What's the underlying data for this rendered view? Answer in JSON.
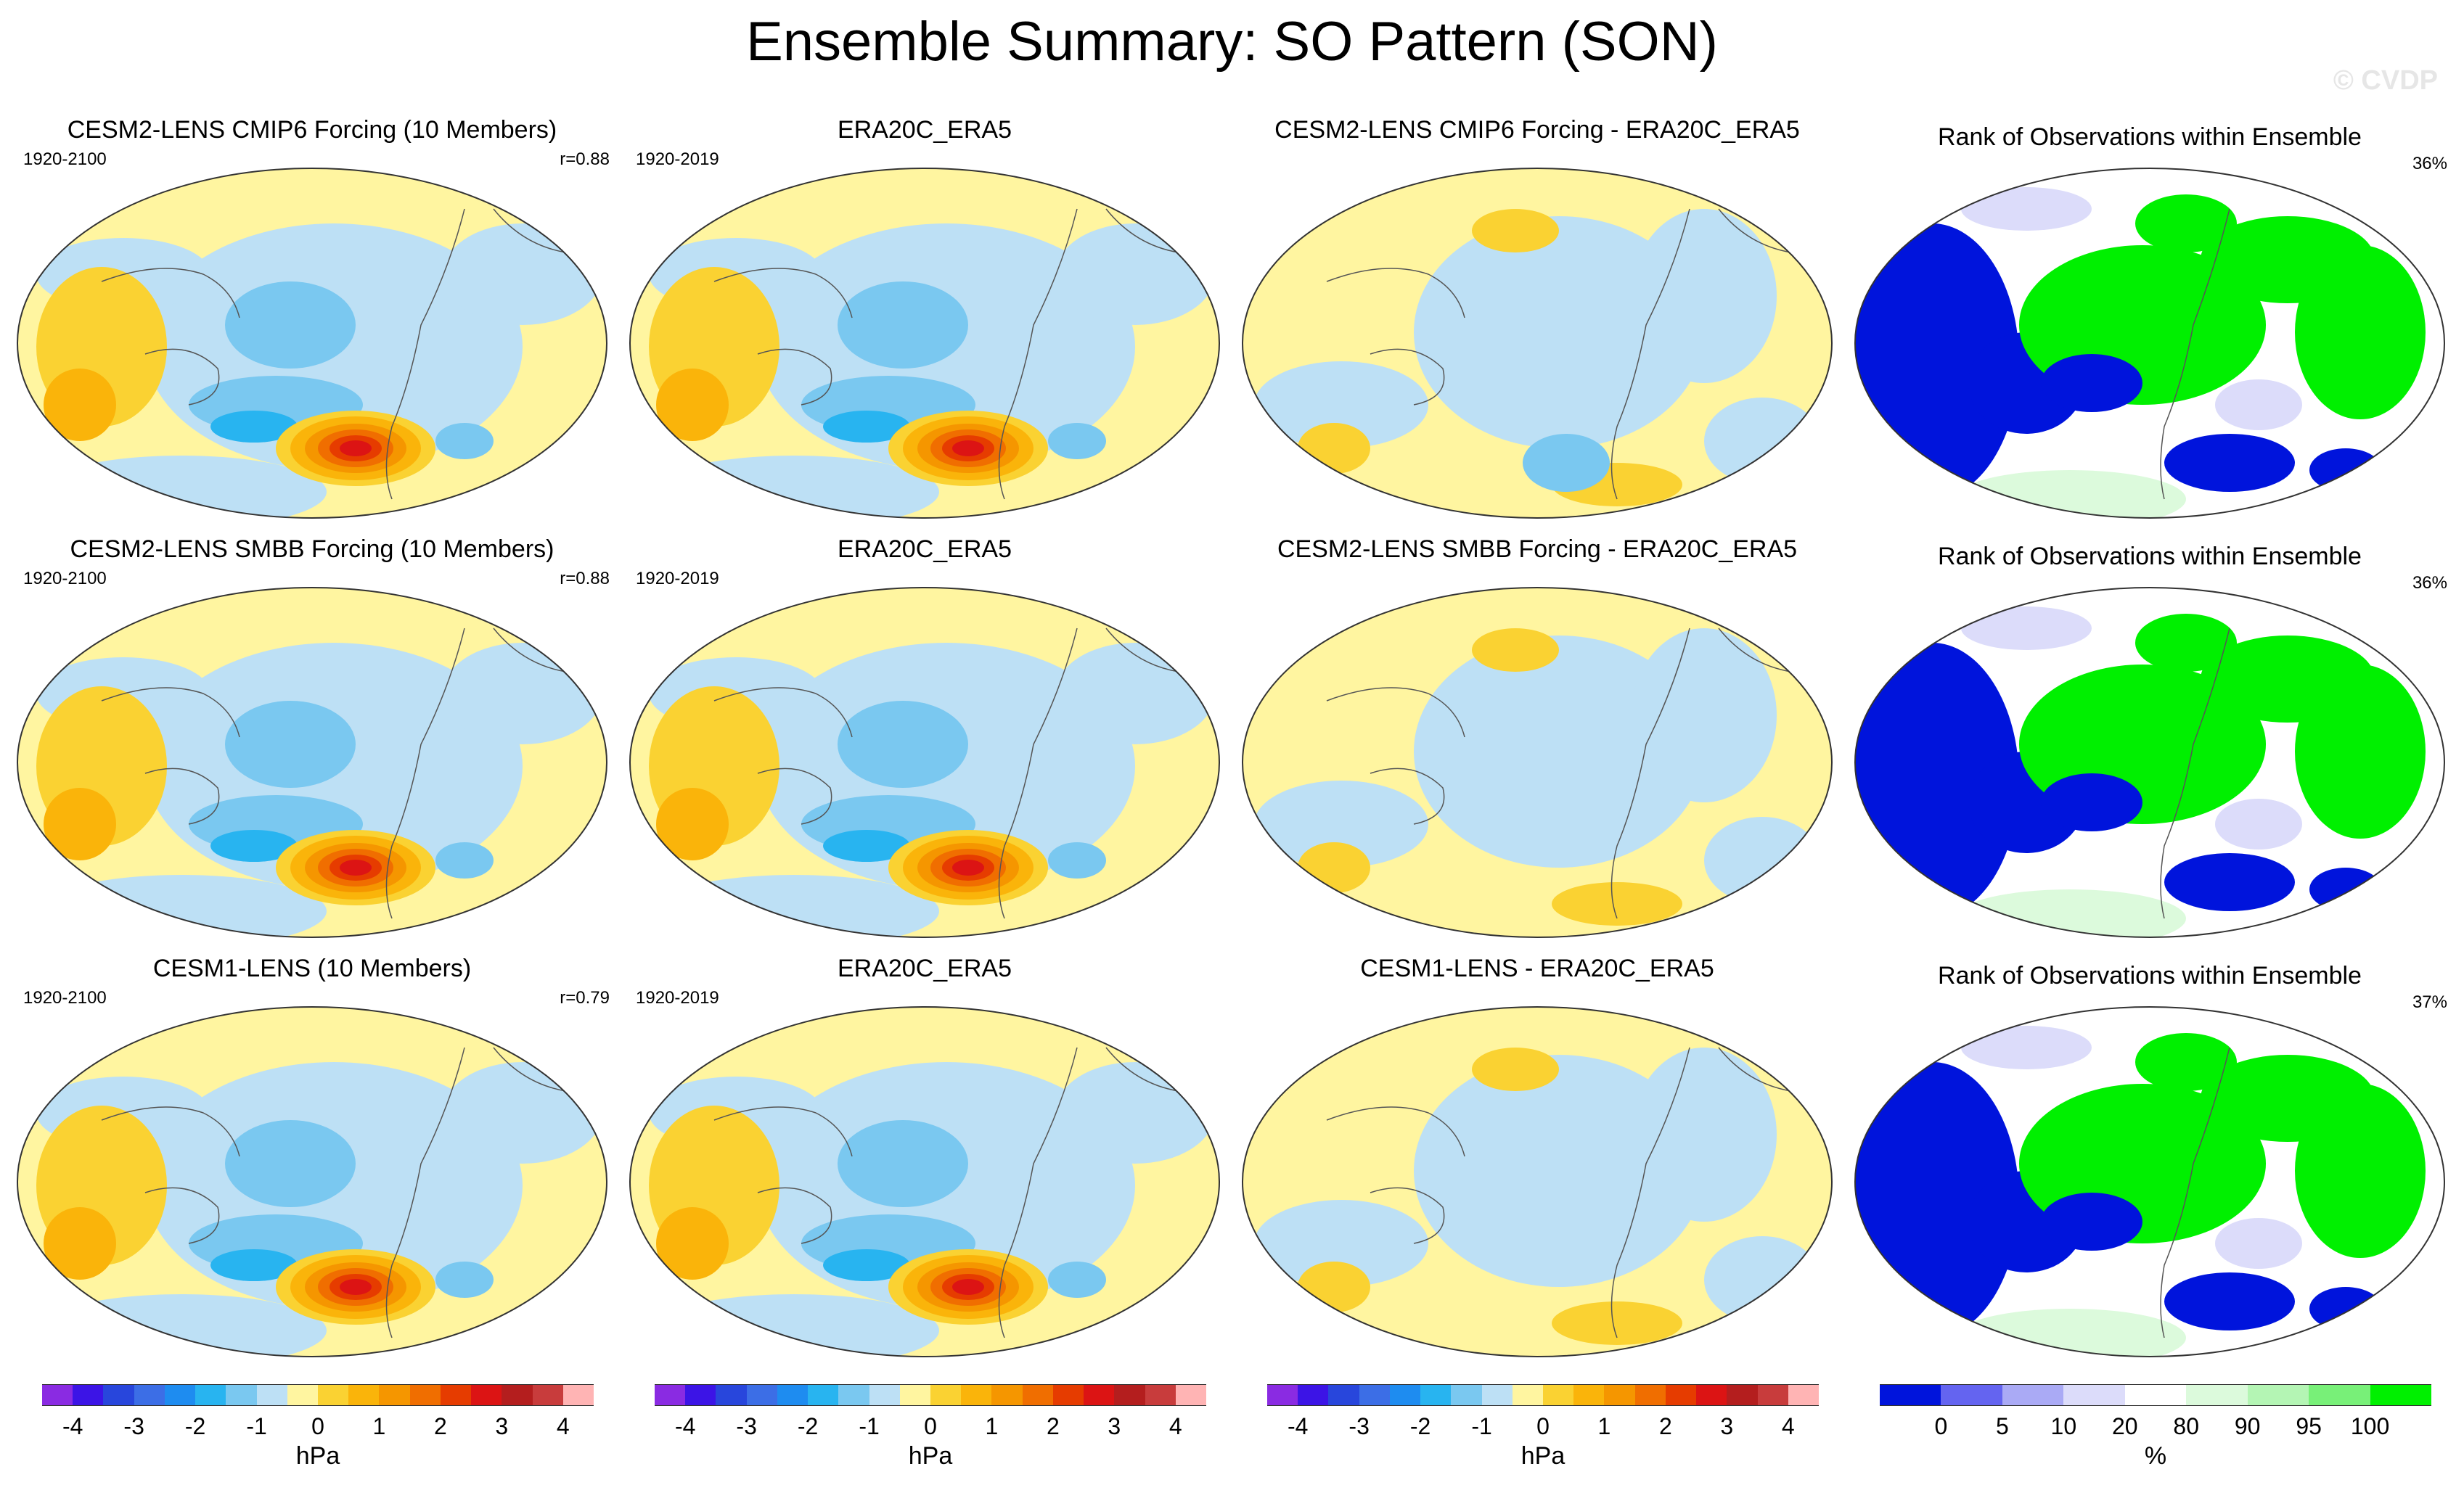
{
  "title": "Ensemble Summary: SO Pattern (SON)",
  "watermark": "© CVDP",
  "rows": [
    {
      "model_title": "CESM2-LENS CMIP6 Forcing (10 Members)",
      "model_period": "1920-2100",
      "model_r": "r=0.88",
      "obs_title": "ERA20C_ERA5",
      "obs_period": "1920-2019",
      "diff_title": "CESM2-LENS CMIP6 Forcing - ERA20C_ERA5",
      "rank_title": "Rank of Observations within Ensemble",
      "rank_pct": "36%"
    },
    {
      "model_title": "CESM2-LENS SMBB Forcing (10 Members)",
      "model_period": "1920-2100",
      "model_r": "r=0.88",
      "obs_title": "ERA20C_ERA5",
      "obs_period": "1920-2019",
      "diff_title": "CESM2-LENS SMBB Forcing - ERA20C_ERA5",
      "rank_title": "Rank of Observations within Ensemble",
      "rank_pct": "36%"
    },
    {
      "model_title": "CESM1-LENS (10 Members)",
      "model_period": "1920-2100",
      "model_r": "r=0.79",
      "obs_title": "ERA20C_ERA5",
      "obs_period": "1920-2019",
      "diff_title": "CESM1-LENS - ERA20C_ERA5",
      "rank_title": "Rank of Observations within Ensemble",
      "rank_pct": "37%"
    }
  ],
  "colorbar_hpa": {
    "colors": [
      "#8a2be2",
      "#3c14e6",
      "#2846dc",
      "#3c6ee6",
      "#1e8cf0",
      "#28b4f0",
      "#7ac8f0",
      "#bde0f5",
      "#fff5a0",
      "#fad232",
      "#fab40a",
      "#f59600",
      "#f06e00",
      "#e63c00",
      "#dc1414",
      "#b41e1e",
      "#c83c3c",
      "#ffb4b4"
    ],
    "labels": [
      "-4",
      "-3",
      "-2",
      "-1",
      "0",
      "1",
      "2",
      "3",
      "4"
    ],
    "unit": "hPa"
  },
  "colorbar_rank": {
    "colors": [
      "#0014dc",
      "#6464f0",
      "#aaaaf5",
      "#dcdcfa",
      "#ffffff",
      "#dcfadc",
      "#b4f5b4",
      "#78f078",
      "#00f000"
    ],
    "labels": [
      "0",
      "5",
      "10",
      "20",
      "80",
      "90",
      "95",
      "100"
    ],
    "unit": "%"
  }
}
